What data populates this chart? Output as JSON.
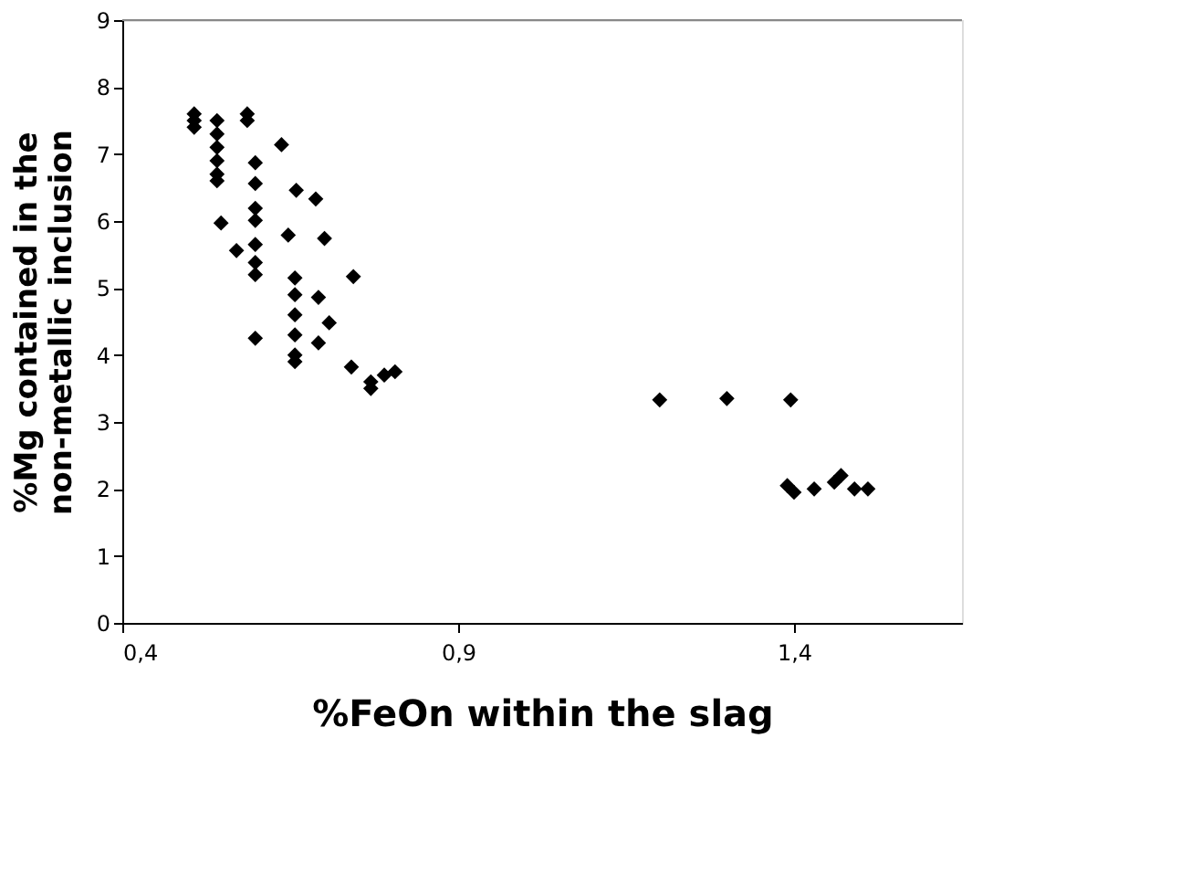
{
  "chart_data": {
    "type": "scatter",
    "xlabel": "%FeOn within the slag",
    "ylabel": "%Mg contained in the non-metallic inclusion",
    "x": [
      0.507,
      0.507,
      0.507,
      0.541,
      0.541,
      0.541,
      0.541,
      0.541,
      0.541,
      0.547,
      0.586,
      0.586,
      0.57,
      0.598,
      0.598,
      0.598,
      0.598,
      0.598,
      0.598,
      0.598,
      0.598,
      0.637,
      0.659,
      0.688,
      0.647,
      0.701,
      0.657,
      0.657,
      0.657,
      0.657,
      0.657,
      0.657,
      0.692,
      0.708,
      0.692,
      0.744,
      0.741,
      0.77,
      0.77,
      0.79,
      0.806,
      1.2,
      1.3,
      1.395,
      1.39,
      1.4,
      1.43,
      1.46,
      1.47,
      1.49,
      1.51
    ],
    "series": [
      {
        "color": "#000000",
        "values": [
          7.6,
          7.5,
          7.4,
          7.5,
          7.3,
          7.1,
          6.9,
          6.7,
          6.6,
          5.97,
          7.6,
          7.5,
          5.56,
          6.87,
          6.56,
          6.19,
          6.01,
          5.65,
          5.38,
          5.2,
          4.25,
          7.14,
          6.46,
          6.33,
          5.79,
          5.74,
          5.15,
          4.9,
          4.6,
          4.3,
          4.0,
          3.9,
          4.86,
          4.48,
          4.18,
          5.17,
          3.82,
          3.6,
          3.5,
          3.7,
          3.75,
          3.33,
          3.35,
          3.33,
          2.05,
          1.95,
          2.0,
          2.1,
          2.2,
          2.0,
          2.0
        ]
      }
    ],
    "xlim": [
      0.4,
      1.65
    ],
    "xticks": [
      {
        "value": 0.4,
        "label": "0,4"
      },
      {
        "value": 0.9,
        "label": "0,9"
      },
      {
        "value": 1.4,
        "label": "1,4"
      }
    ],
    "ylim": [
      0,
      9
    ],
    "yticks": [
      0,
      1,
      2,
      3,
      4,
      5,
      6,
      7,
      8,
      9
    ],
    "grid": false,
    "marker": "diamond"
  }
}
